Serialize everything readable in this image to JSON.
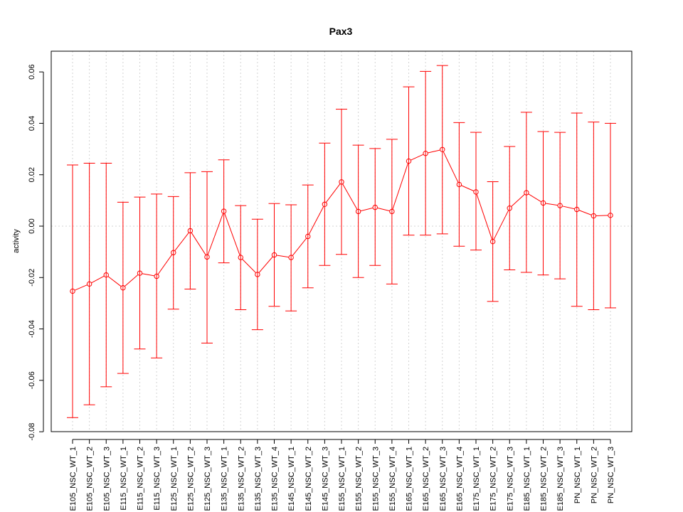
{
  "chart_data": {
    "type": "line",
    "title": "Pax3",
    "xlabel": "",
    "ylabel": "activity",
    "ylim": [
      -0.08,
      0.065
    ],
    "yticks": [
      -0.08,
      -0.06,
      -0.04,
      -0.02,
      0.0,
      0.02,
      0.04,
      0.06
    ],
    "ytick_labels": [
      "-0.08",
      "-0.06",
      "-0.04",
      "-0.02",
      "0.00",
      "0.02",
      "0.04",
      "0.06"
    ],
    "grid": true,
    "series_color": "#ff0000",
    "grid_color": "#d3d3d3",
    "categories": [
      "E105_NSC_WT_1",
      "E105_NSC_WT_2",
      "E105_NSC_WT_3",
      "E115_NSC_WT_1",
      "E115_NSC_WT_2",
      "E115_NSC_WT_3",
      "E125_NSC_WT_1",
      "E125_NSC_WT_2",
      "E125_NSC_WT_3",
      "E135_NSC_WT_1",
      "E135_NSC_WT_2",
      "E135_NSC_WT_3",
      "E135_NSC_WT_4",
      "E145_NSC_WT_1",
      "E145_NSC_WT_2",
      "E145_NSC_WT_3",
      "E155_NSC_WT_1",
      "E155_NSC_WT_2",
      "E155_NSC_WT_3",
      "E155_NSC_WT_4",
      "E165_NSC_WT_1",
      "E165_NSC_WT_2",
      "E165_NSC_WT_3",
      "E165_NSC_WT_4",
      "E175_NSC_WT_1",
      "E175_NSC_WT_2",
      "E175_NSC_WT_3",
      "E185_NSC_WT_1",
      "E185_NSC_WT_2",
      "E185_NSC_WT_3",
      "PN_NSC_WT_1",
      "PN_NSC_WT_2",
      "PN_NSC_WT_3"
    ],
    "values": [
      -0.0253,
      -0.0225,
      -0.019,
      -0.024,
      -0.0183,
      -0.0195,
      -0.0103,
      -0.0018,
      -0.012,
      0.0058,
      -0.0122,
      -0.0188,
      -0.0112,
      -0.0122,
      -0.004,
      0.0085,
      0.0172,
      0.0057,
      0.0073,
      0.0057,
      0.0253,
      0.0283,
      0.0298,
      0.0162,
      0.0133,
      -0.006,
      0.007,
      0.013,
      0.009,
      0.008,
      0.0065,
      0.004,
      0.0042
    ],
    "upper": [
      0.0238,
      0.0245,
      0.0245,
      0.0093,
      0.0113,
      0.0125,
      0.0115,
      0.0208,
      0.0212,
      0.0258,
      0.008,
      0.0027,
      0.0088,
      0.0083,
      0.016,
      0.0323,
      0.0455,
      0.0315,
      0.0302,
      0.0338,
      0.0542,
      0.0602,
      0.0625,
      0.0403,
      0.0365,
      0.0173,
      0.031,
      0.0443,
      0.0368,
      0.0365,
      0.044,
      0.0405,
      0.04
    ],
    "lower": [
      -0.0745,
      -0.0695,
      -0.0625,
      -0.0573,
      -0.0478,
      -0.0513,
      -0.0323,
      -0.0245,
      -0.0455,
      -0.0143,
      -0.0325,
      -0.0403,
      -0.0312,
      -0.033,
      -0.024,
      -0.0153,
      -0.011,
      -0.02,
      -0.0153,
      -0.0225,
      -0.0035,
      -0.0035,
      -0.003,
      -0.0078,
      -0.0093,
      -0.0293,
      -0.017,
      -0.018,
      -0.019,
      -0.0205,
      -0.0312,
      -0.0325,
      -0.0318
    ]
  }
}
